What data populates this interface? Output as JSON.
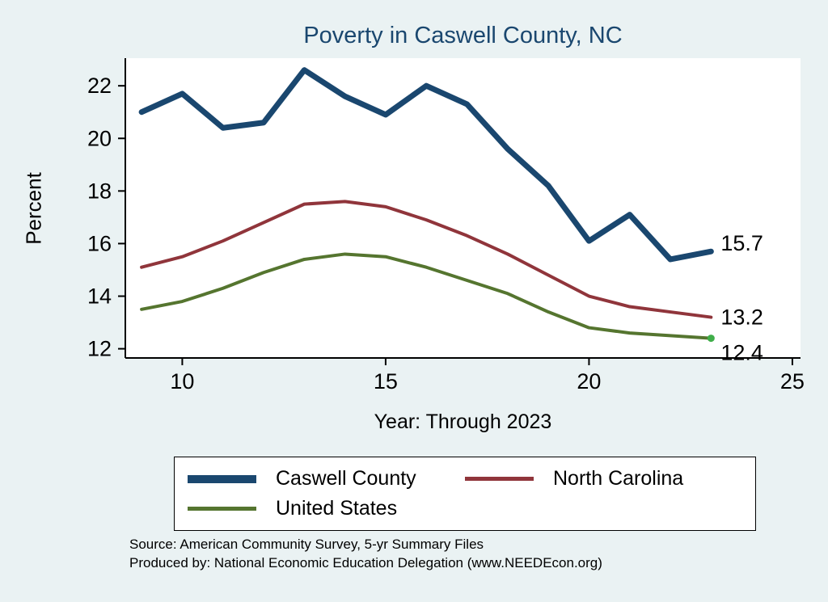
{
  "title": "Poverty in Caswell County, NC",
  "axes": {
    "y_label": "Percent",
    "x_label": "Year: Through 2023"
  },
  "source": {
    "line1": "Source: American Community Survey, 5-yr Summary Files",
    "line2": "Produced by: National Economic Education Delegation (www.NEEDEcon.org)"
  },
  "colors": {
    "background": "#EAF2F3",
    "plot_background": "#FFFFFF",
    "title": "#1A476F",
    "axis": "#000000",
    "caswell_county": "#1A476F",
    "north_carolina": "#90353B",
    "united_states": "#55752F",
    "end_marker": "#3FAE49"
  },
  "chart_data": {
    "type": "line",
    "title": "Poverty in Caswell County, NC",
    "xlabel": "Year: Through 2023",
    "ylabel": "Percent",
    "grid": false,
    "legend_position": "bottom",
    "x": [
      9,
      10,
      11,
      12,
      13,
      14,
      15,
      16,
      17,
      18,
      19,
      20,
      21,
      22,
      23
    ],
    "xticks": [
      10,
      15,
      20,
      25
    ],
    "yticks": [
      12,
      14,
      16,
      18,
      20,
      22
    ],
    "xlim": [
      8.6,
      25.2
    ],
    "ylim": [
      11.65,
      23.05
    ],
    "series": [
      {
        "name": "Caswell County",
        "color": "#1A476F",
        "width": 7,
        "values": [
          21.0,
          21.7,
          20.4,
          20.6,
          22.6,
          21.6,
          20.9,
          22.0,
          21.3,
          19.6,
          18.2,
          16.1,
          17.1,
          15.4,
          15.7
        ],
        "end_label": "15.7",
        "label_dy": -10,
        "end_marker": false
      },
      {
        "name": "North Carolina",
        "color": "#90353B",
        "width": 4,
        "values": [
          15.1,
          15.5,
          16.1,
          16.8,
          17.5,
          17.6,
          17.4,
          16.9,
          16.3,
          15.6,
          14.8,
          14.0,
          13.6,
          13.4,
          13.2
        ],
        "end_label": "13.2",
        "label_dy": 0,
        "end_marker": false
      },
      {
        "name": "United States",
        "color": "#55752F",
        "width": 4,
        "values": [
          13.5,
          13.8,
          14.3,
          14.9,
          15.4,
          15.6,
          15.5,
          15.1,
          14.6,
          14.1,
          13.4,
          12.8,
          12.6,
          12.5,
          12.4
        ],
        "end_label": "12.4",
        "label_dy": 18,
        "end_marker": true
      }
    ]
  }
}
